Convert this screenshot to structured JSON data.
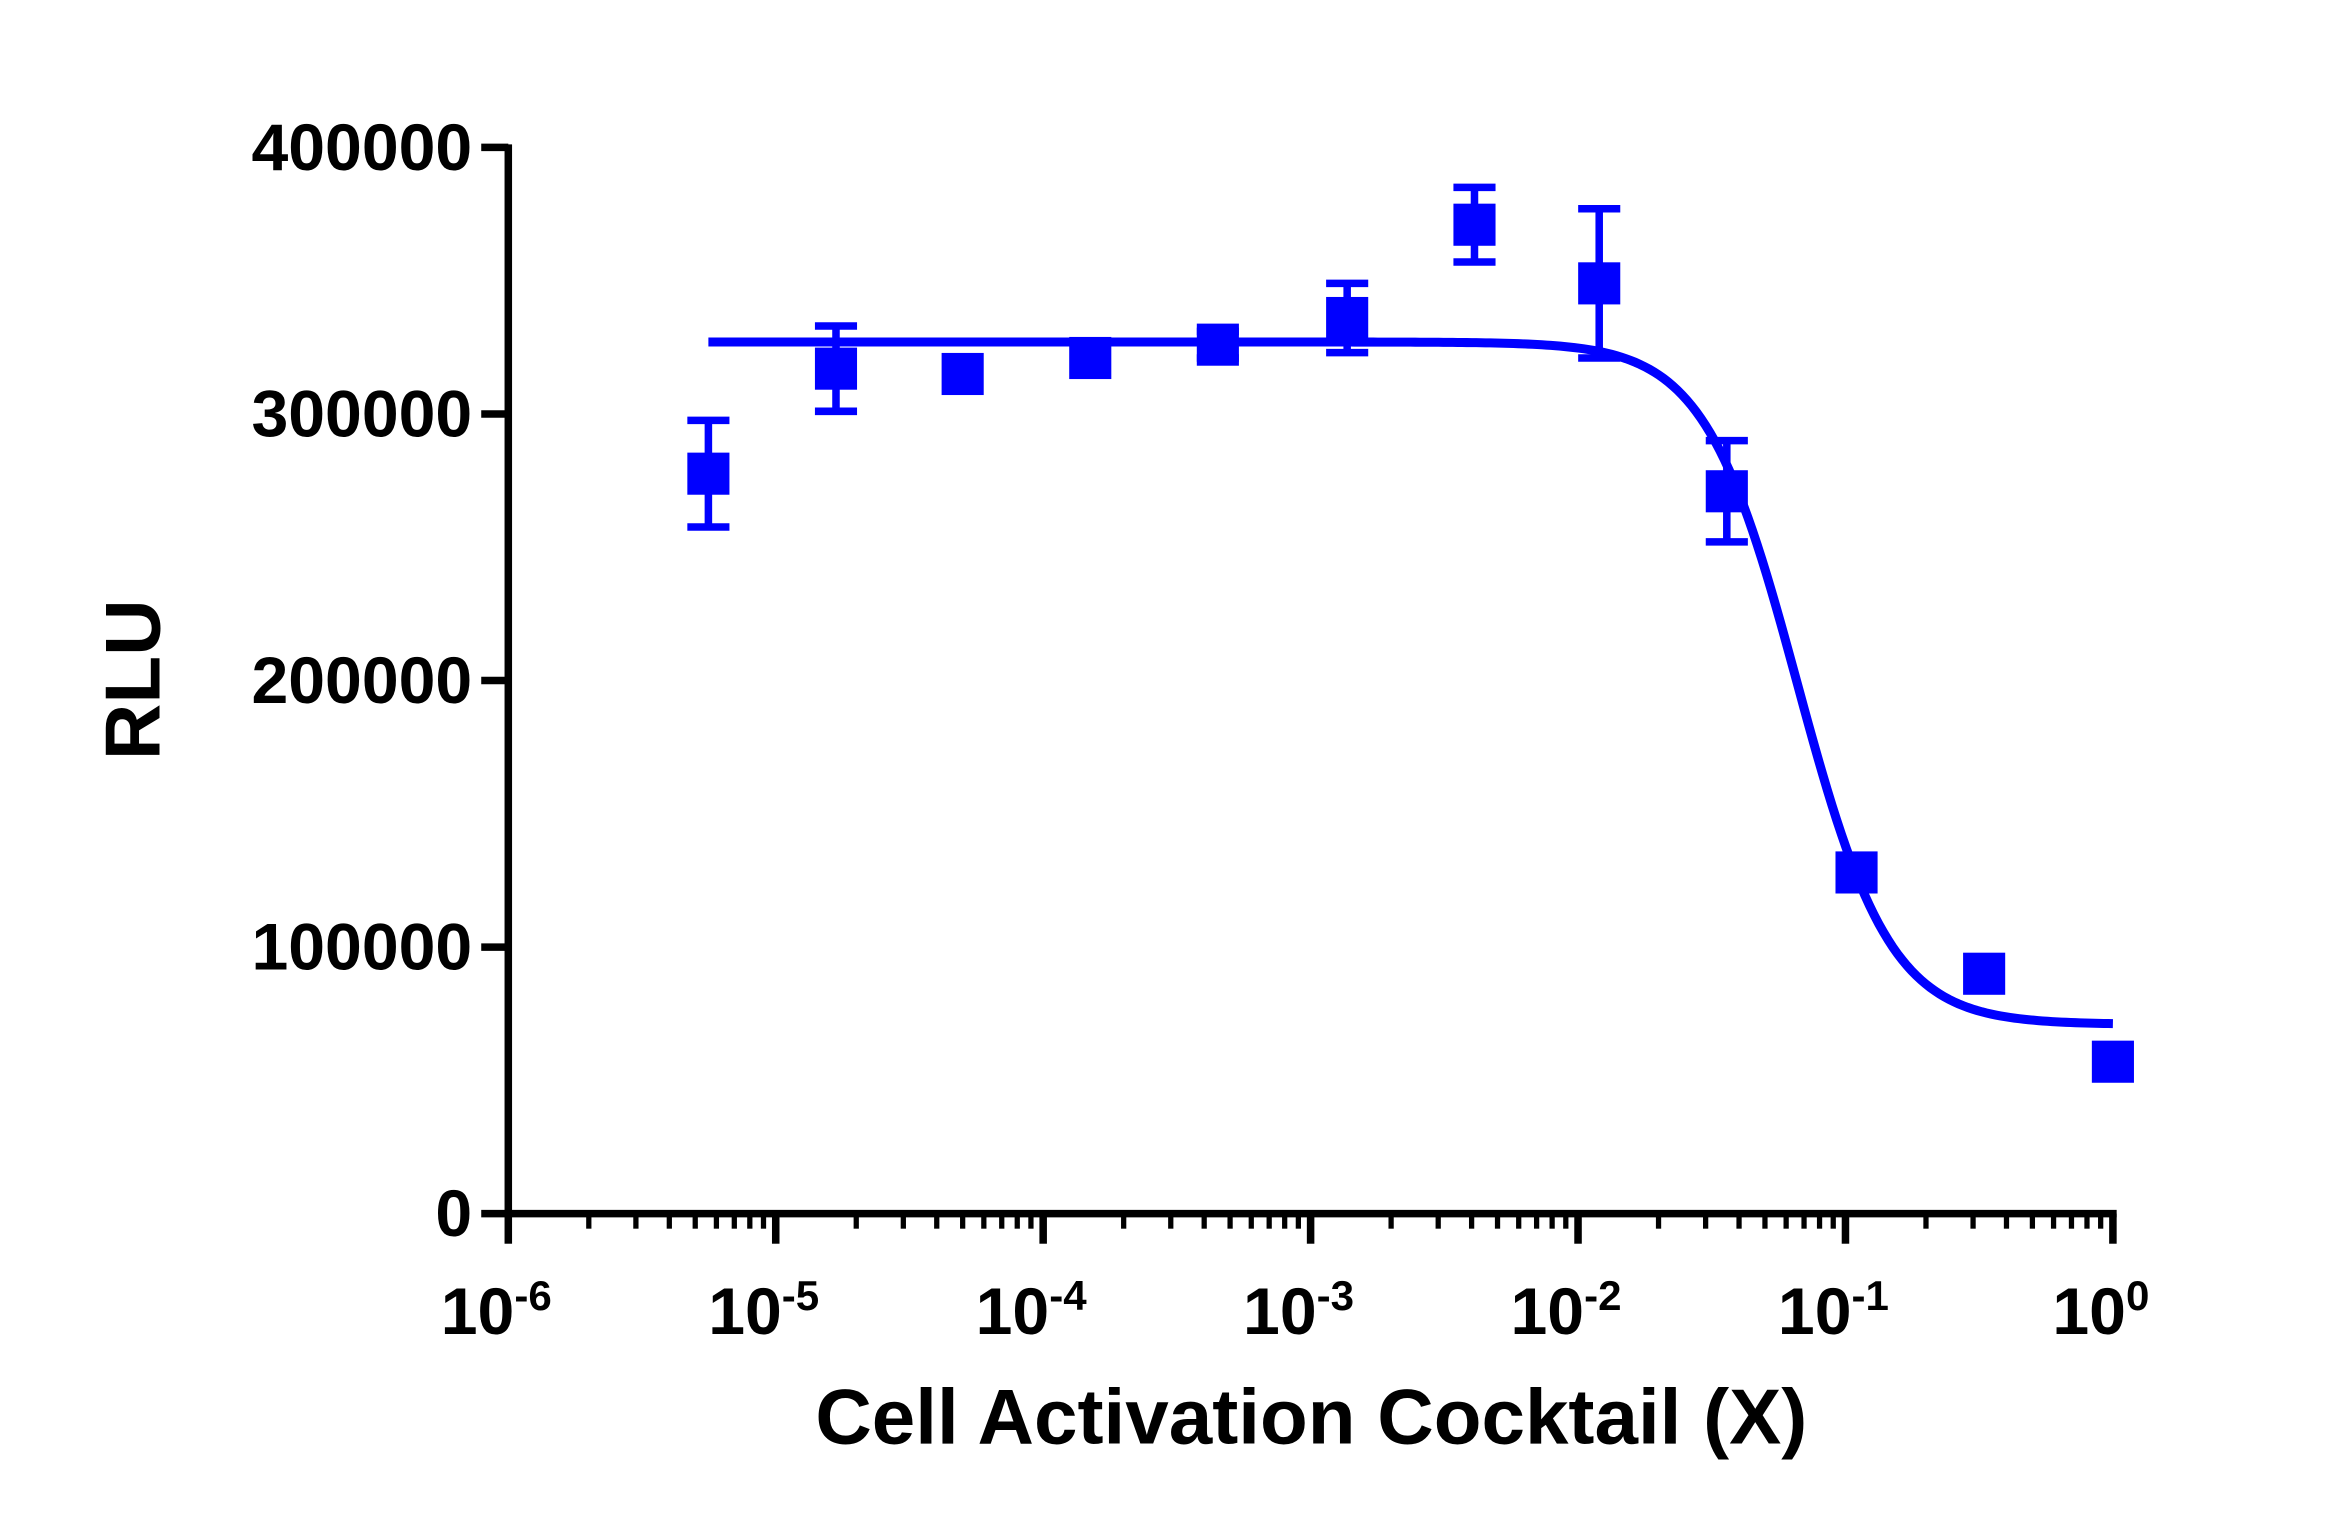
{
  "chart_data": {
    "type": "scatter",
    "title": "",
    "xlabel": "Cell Activation Cocktail (X)",
    "ylabel": "RLU",
    "xscale": "log",
    "xlim": [
      1e-06,
      1
    ],
    "ylim": [
      0,
      400000
    ],
    "x_ticks": [
      {
        "base": "10",
        "exp": "-6",
        "value": 1e-06
      },
      {
        "base": "10",
        "exp": "-5",
        "value": 1e-05
      },
      {
        "base": "10",
        "exp": "-4",
        "value": 0.0001
      },
      {
        "base": "10",
        "exp": "-3",
        "value": 0.001
      },
      {
        "base": "10",
        "exp": "-2",
        "value": 0.01
      },
      {
        "base": "10",
        "exp": "-1",
        "value": 0.1
      },
      {
        "base": "10",
        "exp": "0",
        "value": 1
      }
    ],
    "y_ticks": [
      "0",
      "100000",
      "200000",
      "300000",
      "400000"
    ],
    "grid": false,
    "color": "#0000ff",
    "marker": "square",
    "points": [
      {
        "x": 5.6e-06,
        "y": 277600,
        "err": 20000
      },
      {
        "x": 1.68e-05,
        "y": 317000,
        "err": 16000
      },
      {
        "x": 5e-05,
        "y": 315000,
        "err": 0
      },
      {
        "x": 0.00015,
        "y": 321000,
        "err": 0
      },
      {
        "x": 0.00045,
        "y": 326000,
        "err": 5000
      },
      {
        "x": 0.00137,
        "y": 336000,
        "err": 13000
      },
      {
        "x": 0.0041,
        "y": 371000,
        "err": 14000
      },
      {
        "x": 0.012,
        "y": 349000,
        "err": 28000
      },
      {
        "x": 0.036,
        "y": 271000,
        "err": 19000
      },
      {
        "x": 0.11,
        "y": 128000,
        "err": 0
      },
      {
        "x": 0.33,
        "y": 90000,
        "err": 0
      },
      {
        "x": 1.0,
        "y": 57000,
        "err": 0
      }
    ],
    "fit": {
      "model": "4PL",
      "top": 327000,
      "bottom": 71000,
      "ic50": 0.066,
      "hill": 2.5,
      "x_range": [
        5.6e-06,
        1.0
      ]
    }
  }
}
